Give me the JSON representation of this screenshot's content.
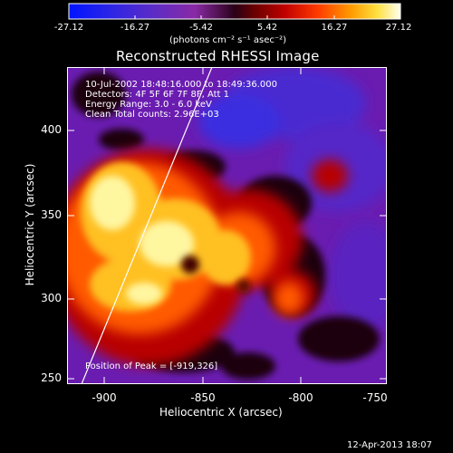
{
  "colorbar": {
    "tick_labels": [
      "-27.12",
      "-16.27",
      "-5.42",
      "5.42",
      "16.27",
      "27.12"
    ],
    "unit_label": "(photons cm⁻² s⁻¹ asec⁻²)"
  },
  "plot": {
    "title": "Reconstructed RHESSI Image",
    "xlabel": "Heliocentric X (arcsec)",
    "ylabel": "Heliocentric Y (arcsec)",
    "x_ticks": [
      "-900",
      "-850",
      "-800",
      "-750"
    ],
    "y_ticks": [
      "400",
      "350",
      "300",
      "250"
    ],
    "info_lines": [
      "10-Jul-2002 18:48:16.000 to 18:49:36.000",
      "Detectors: 4F 5F 6F 7F 8F, Att 1",
      "Energy Range: 3.0 - 6.0 keV",
      "Clean    Total counts: 2.96E+03"
    ],
    "peak_label": "Position of Peak = [-919,326]"
  },
  "footer": {
    "date": "12-Apr-2013 18:07"
  },
  "colors": {
    "background": "#000000",
    "foreground": "#ffffff"
  }
}
